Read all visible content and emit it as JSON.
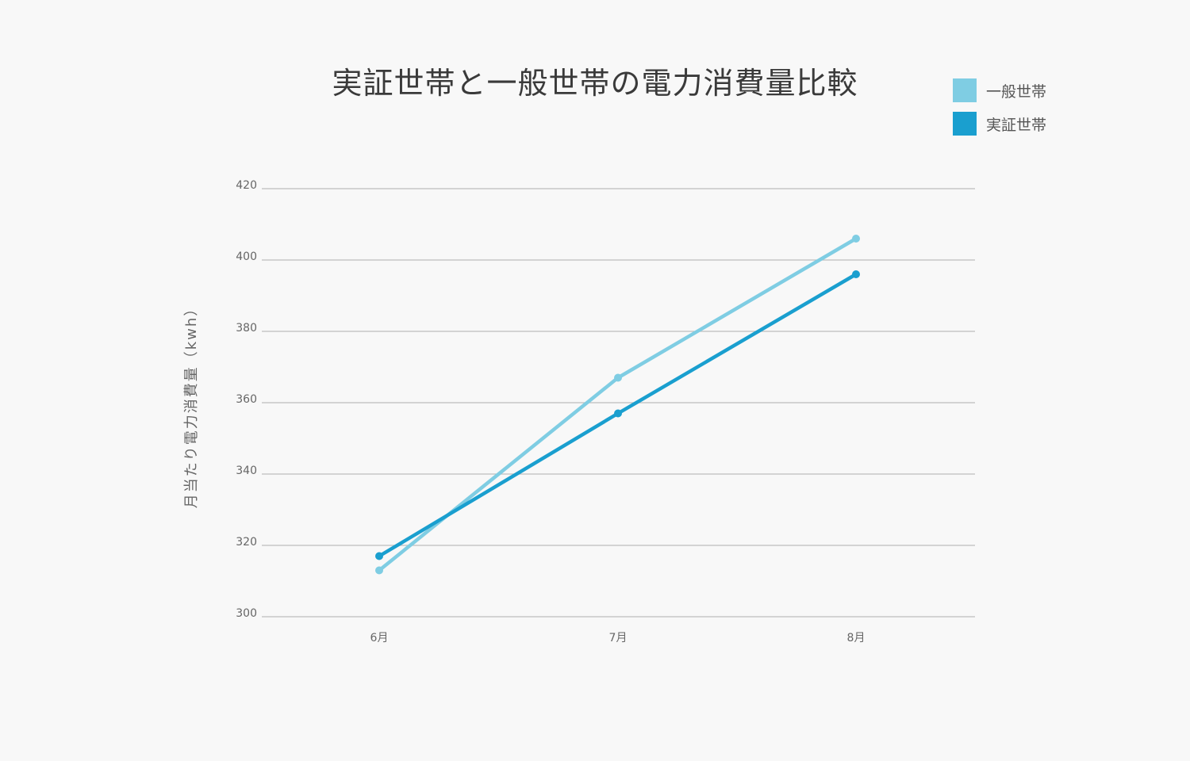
{
  "chart_data": {
    "type": "line",
    "title": "実証世帯と一般世帯の電力消費量比較",
    "xlabel": "",
    "ylabel": "月当たり電力消費量（kwh）",
    "categories": [
      "6月",
      "7月",
      "8月"
    ],
    "series": [
      {
        "name": "一般世帯",
        "color": "#7fcde3",
        "values": [
          313,
          367,
          406
        ]
      },
      {
        "name": "実証世帯",
        "color": "#1a9fcf",
        "values": [
          317,
          357,
          396
        ]
      }
    ],
    "ylim": [
      300,
      420
    ],
    "yticks": [
      300,
      320,
      340,
      360,
      380,
      400,
      420
    ],
    "grid": true,
    "legend_position": "top-right"
  },
  "legend": [
    {
      "label": "一般世帯",
      "color": "#7fcde3"
    },
    {
      "label": "実証世帯",
      "color": "#1a9fcf"
    }
  ]
}
